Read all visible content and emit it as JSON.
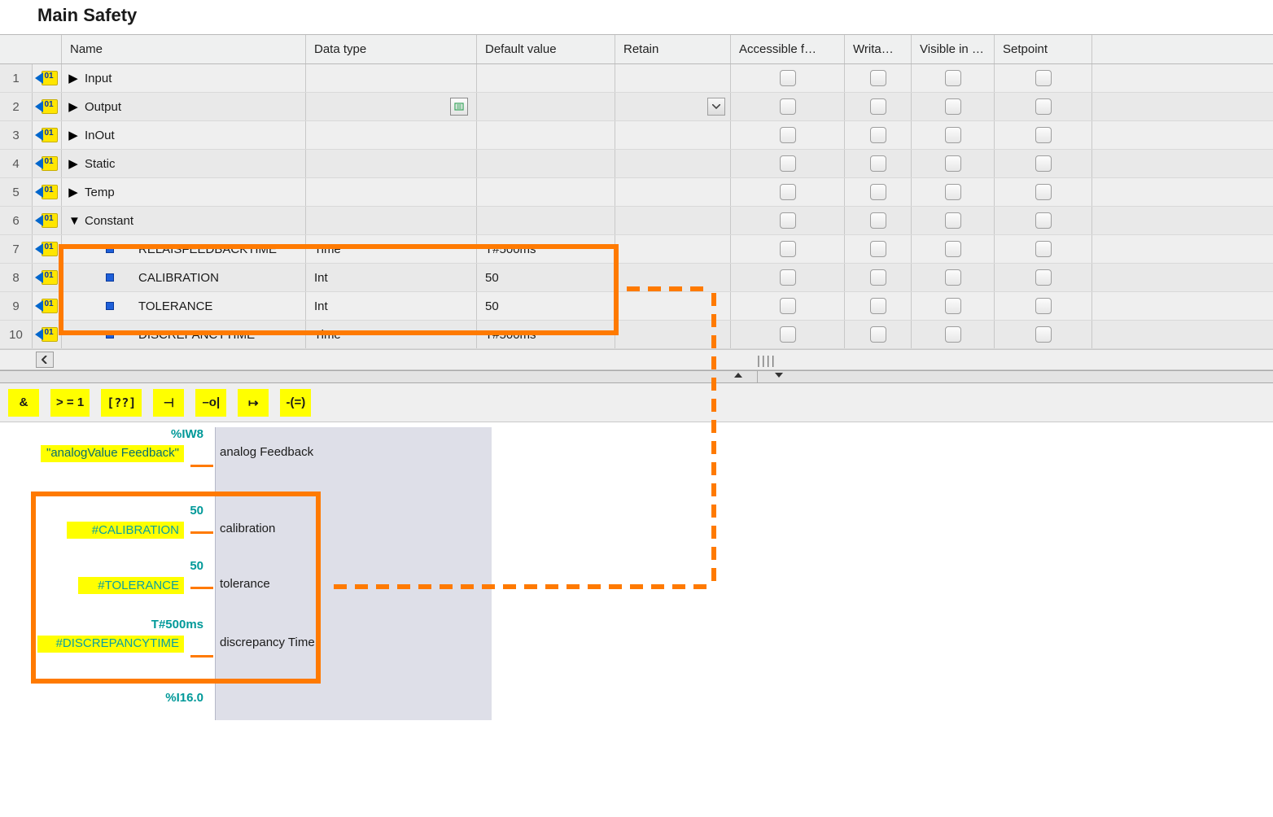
{
  "title": "Main Safety",
  "columns": {
    "name": "Name",
    "type": "Data type",
    "default": "Default value",
    "retain": "Retain",
    "acc": "Accessible f…",
    "wri": "Writa…",
    "vis": "Visible in …",
    "set": "Setpoint"
  },
  "rows": [
    {
      "n": "1",
      "expand": "▶",
      "indent": 0,
      "name": "Input",
      "type": "",
      "default": "",
      "showList": false,
      "showDrop": false
    },
    {
      "n": "2",
      "expand": "▶",
      "indent": 0,
      "name": "Output",
      "type": "",
      "default": "",
      "showList": true,
      "showDrop": true
    },
    {
      "n": "3",
      "expand": "▶",
      "indent": 0,
      "name": "InOut",
      "type": "",
      "default": "",
      "showList": false,
      "showDrop": false
    },
    {
      "n": "4",
      "expand": "▶",
      "indent": 0,
      "name": "Static",
      "type": "",
      "default": "",
      "showList": false,
      "showDrop": false
    },
    {
      "n": "5",
      "expand": "▶",
      "indent": 0,
      "name": "Temp",
      "type": "",
      "default": "",
      "showList": false,
      "showDrop": false
    },
    {
      "n": "6",
      "expand": "▼",
      "indent": 0,
      "name": "Constant",
      "type": "",
      "default": "",
      "showList": false,
      "showDrop": false
    },
    {
      "n": "7",
      "expand": "",
      "indent": 1,
      "name": "RELAISFEEDBACKTIME",
      "type": "Time",
      "default": "T#500ms",
      "showList": false,
      "showDrop": false,
      "bullet": true
    },
    {
      "n": "8",
      "expand": "",
      "indent": 1,
      "name": "CALIBRATION",
      "type": "Int",
      "default": "50",
      "showList": false,
      "showDrop": false,
      "bullet": true
    },
    {
      "n": "9",
      "expand": "",
      "indent": 1,
      "name": "TOLERANCE",
      "type": "Int",
      "default": "50",
      "showList": false,
      "showDrop": false,
      "bullet": true
    },
    {
      "n": "10",
      "expand": "",
      "indent": 1,
      "name": "DISCREPANCYTIME",
      "type": "Time",
      "default": "T#500ms",
      "showList": false,
      "showDrop": false,
      "bullet": true
    }
  ],
  "toolbar": {
    "and": "&",
    "ge1": "> = 1",
    "box": "??",
    "not": "⊣",
    "coil": "–o|",
    "branch": "↦",
    "cmp": "-(=)"
  },
  "network": {
    "i0": {
      "addr": "%IW8",
      "tag": "\"analogValue Feedback\"",
      "label": "analog Feedback"
    },
    "i1": {
      "val": "50",
      "tag": "#CALIBRATION",
      "label": "calibration"
    },
    "i2": {
      "val": "50",
      "tag": "#TOLERANCE",
      "label": "tolerance"
    },
    "i3": {
      "val": "T#500ms",
      "tag": "#DISCREPANCYTIME",
      "label": "discrepancy Time"
    },
    "q0": {
      "addr": "%I16.0"
    }
  },
  "colors": {
    "highlight": "#ff7a00",
    "yellow": "#ffff00",
    "teal": "#009999"
  }
}
